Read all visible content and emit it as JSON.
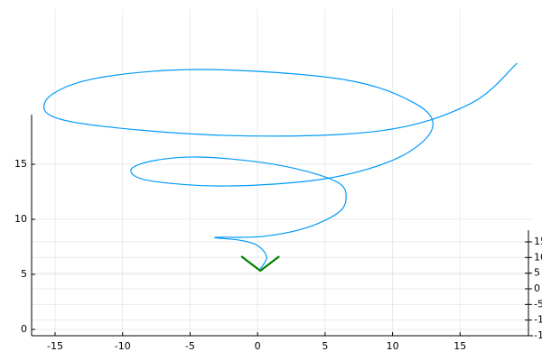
{
  "chart_data": {
    "type": "line",
    "series": [
      {
        "color": "#009af9",
        "x": [
          0.2,
          0.67,
          0,
          -1.34,
          -3.15,
          0.33,
          3.68,
          6.03,
          6.56,
          6.03,
          3.68,
          0.33,
          -4.35,
          -7.7,
          -9.38,
          -8.04,
          -2.34,
          5.02,
          10.38,
          12.93,
          11.72,
          6.36,
          -4.35,
          -12.39,
          -15.74,
          -13.73,
          -2.34,
          9.04,
          15.74,
          19.22
        ],
        "values": [
          5.49,
          6.56,
          7.62,
          8.11,
          8.36,
          8.44,
          9.26,
          10.66,
          12.05,
          13.28,
          14.34,
          15.16,
          15.66,
          15.33,
          14.51,
          13.52,
          13.03,
          13.69,
          15.57,
          18.2,
          20.49,
          22.7,
          23.61,
          22.7,
          20.66,
          18.85,
          17.62,
          18.03,
          20.49,
          24.18
        ]
      },
      {
        "color": "#008000",
        "x": [
          -1.21,
          0.2,
          1.61
        ],
        "values": [
          6.64,
          5.33,
          6.64
        ]
      }
    ],
    "xlim": [
      -16.74,
      20.4
    ],
    "xticks": [
      -15,
      -10,
      -5,
      0,
      5,
      10,
      15
    ],
    "ylim": [
      -0.57,
      29.1
    ],
    "yticks": [
      0,
      5,
      10,
      15
    ],
    "y2lim": [
      -15,
      15
    ],
    "y2ticks": [
      15,
      10,
      5,
      0,
      -5,
      -10,
      -15
    ],
    "grid": true
  }
}
